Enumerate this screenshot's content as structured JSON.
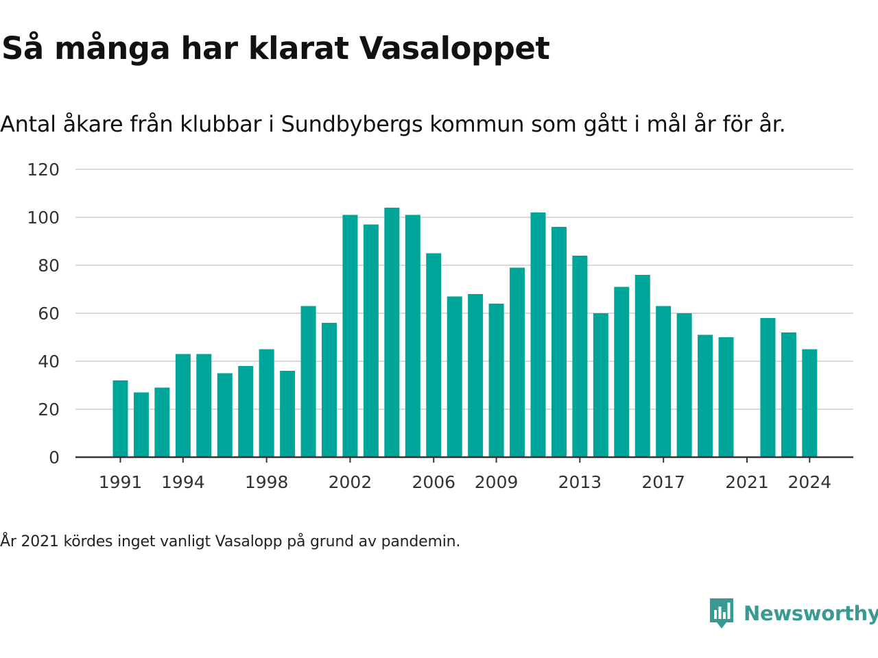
{
  "header": {
    "title": "Så många har klarat Vasaloppet",
    "subtitle": "Antal åkare från klubbar i Sundbybergs kommun som gått i mål år för år."
  },
  "footnote": "År 2021 kördes inget vanligt Vasalopp på grund av pandemin.",
  "brand": {
    "name": "Newsworthy",
    "icon": "newsworthy-logo-icon",
    "color": "#3a9a93"
  },
  "colors": {
    "bar": "#00a59a",
    "grid": "#d9d9d9",
    "axis": "#333333"
  },
  "chart_data": {
    "type": "bar",
    "categories": [
      1991,
      1992,
      1993,
      1994,
      1995,
      1996,
      1997,
      1998,
      1999,
      2000,
      2001,
      2002,
      2003,
      2004,
      2005,
      2006,
      2007,
      2008,
      2009,
      2010,
      2011,
      2012,
      2013,
      2014,
      2015,
      2016,
      2017,
      2018,
      2019,
      2020,
      2021,
      2022,
      2023,
      2024
    ],
    "values": [
      32,
      27,
      29,
      43,
      43,
      35,
      38,
      45,
      36,
      63,
      56,
      101,
      97,
      104,
      101,
      85,
      67,
      68,
      64,
      79,
      102,
      96,
      84,
      60,
      71,
      76,
      63,
      60,
      51,
      50,
      null,
      58,
      52,
      45
    ],
    "x_tick_labels": [
      1991,
      1994,
      1998,
      2002,
      2006,
      2009,
      2013,
      2017,
      2021,
      2024
    ],
    "ylim": [
      0,
      120
    ],
    "y_ticks": [
      0,
      20,
      40,
      60,
      80,
      100,
      120
    ],
    "grid": true,
    "xlabel": "",
    "ylabel": ""
  }
}
